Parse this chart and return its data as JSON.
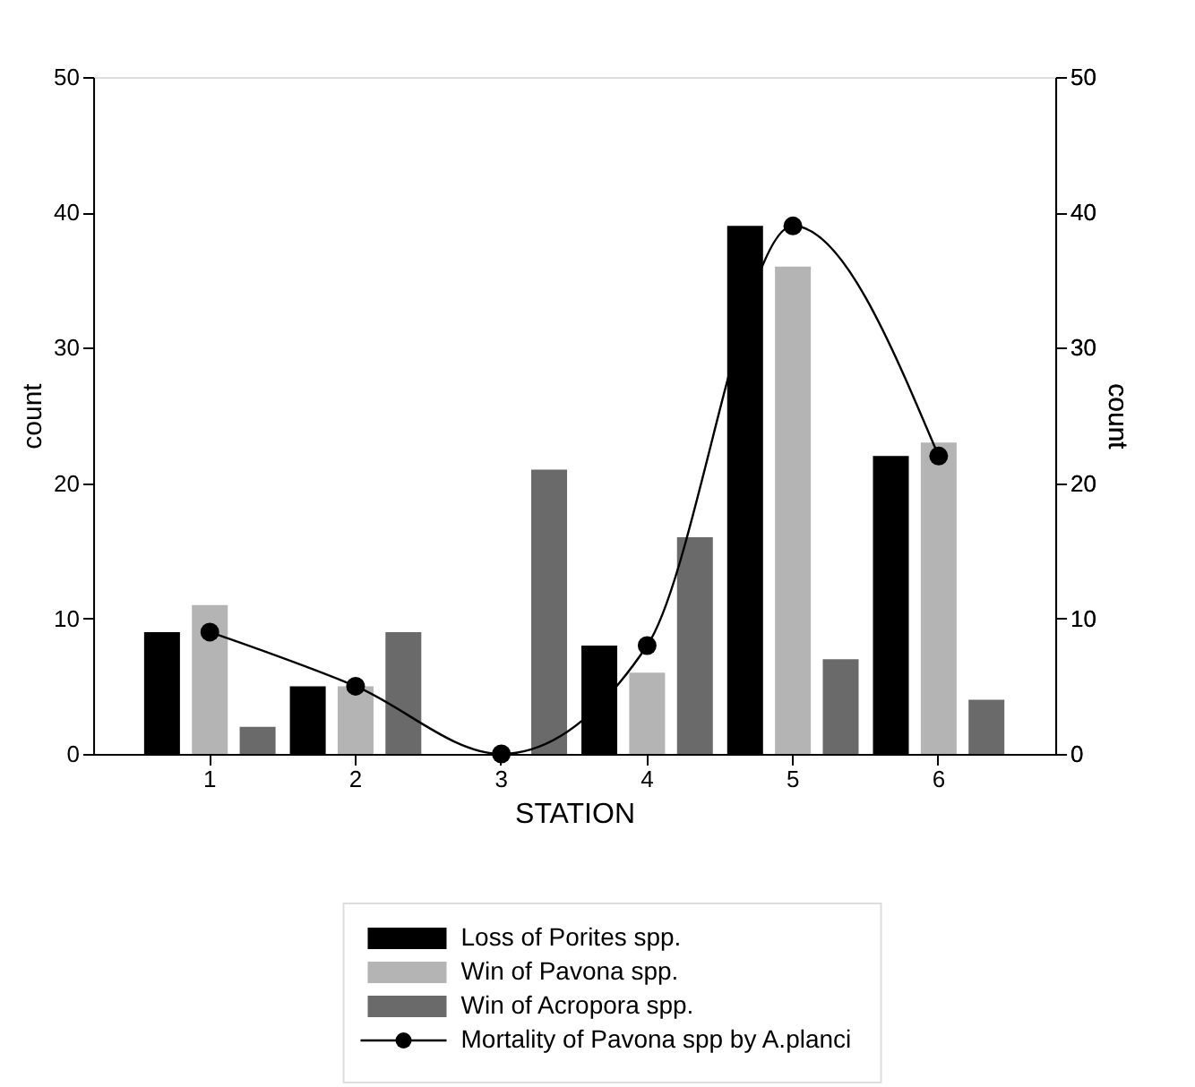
{
  "chart_data": {
    "type": "bar",
    "xlabel": "STATION",
    "ylabel": "count",
    "y2label": "count",
    "categories": [
      "1",
      "2",
      "3",
      "4",
      "5",
      "6"
    ],
    "series": [
      {
        "name": "Loss of Porites spp.",
        "color": "#000000",
        "values": [
          9,
          5,
          0,
          8,
          39,
          22
        ]
      },
      {
        "name": "Win of Pavona spp.",
        "color": "#b4b4b4",
        "values": [
          11,
          5,
          0,
          6,
          36,
          23
        ]
      },
      {
        "name": "Win of Acropora spp.",
        "color": "#6a6a6a",
        "values": [
          2,
          9,
          21,
          16,
          7,
          4
        ]
      },
      {
        "name": "Mortality of Pavona spp by A.planci",
        "color": "#000000",
        "type": "line",
        "axis": "y2",
        "marker": "circle",
        "values": [
          9,
          5,
          0,
          8,
          39,
          22
        ]
      }
    ],
    "ylim": [
      0,
      50
    ],
    "yticks": [
      0,
      10,
      20,
      30,
      40,
      50
    ],
    "y2lim": [
      0,
      50
    ],
    "y2ticks": [
      0,
      10,
      20,
      30,
      40,
      50
    ],
    "grid": false,
    "legend": "bottom"
  }
}
